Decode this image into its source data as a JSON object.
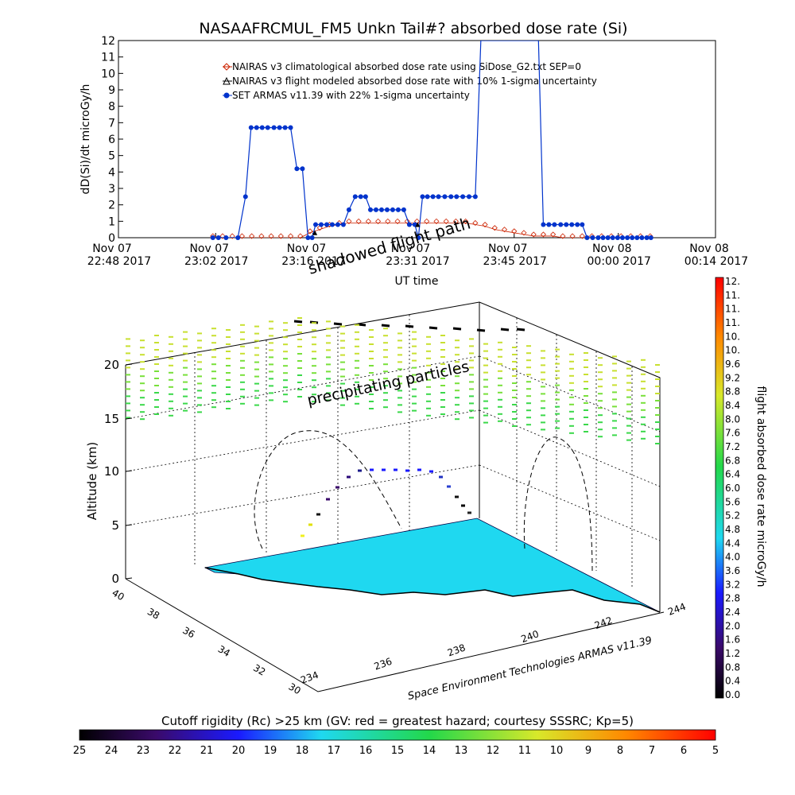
{
  "chart_data": [
    {
      "type": "line",
      "title": "NASAAFRCMUL_FM5 Unkn Tail#? absorbed dose rate (Si)",
      "xlabel": "UT time",
      "ylabel": "dD(Si)/dt microGy/h",
      "ylim": [
        0,
        12
      ],
      "yticks": [
        "0",
        "1",
        "2",
        "3",
        "4",
        "5",
        "6",
        "7",
        "8",
        "9",
        "10",
        "11",
        "12"
      ],
      "xticks": [
        {
          "line1": "Nov 07",
          "line2": "22:48 2017",
          "min": 0
        },
        {
          "line1": "Nov 07",
          "line2": "23:02 2017",
          "min": 14
        },
        {
          "line1": "Nov 07",
          "line2": "23:16 2017",
          "min": 28
        },
        {
          "line1": "Nov 07",
          "line2": "23:31 2017",
          "min": 43
        },
        {
          "line1": "Nov 07",
          "line2": "23:45 2017",
          "min": 57
        },
        {
          "line1": "Nov 08",
          "line2": "00:00 2017",
          "min": 72
        },
        {
          "line1": "Nov 08",
          "line2": "00:14 2017",
          "min": 86
        }
      ],
      "xlim_minutes": [
        0,
        86
      ],
      "legend": [
        {
          "text": "NAIRAS v3 climatological absorbed dose rate using SiDose_G2.txt SEP=0",
          "marker": "diamond",
          "color": "#cc2200"
        },
        {
          "text": "NAIRAS v3 flight modeled absorbed dose rate with 10% 1-sigma uncertainty",
          "marker": "triangle",
          "color": "#000000"
        },
        {
          "text": "SET ARMAS v11.39 with 22% 1-sigma uncertainty",
          "marker": "dot",
          "color": "#0033cc"
        }
      ],
      "legend_placement": "top-center",
      "annotation": "shadowed flight path",
      "series": [
        {
          "name": "SET ARMAS v11.39 with 22% 1-sigma uncertainty",
          "color": "#0033cc",
          "x": [
            13.6,
            14.4,
            15.5,
            17.2,
            18.3,
            19.1,
            19.9,
            20.7,
            21.5,
            22.4,
            23.2,
            24.0,
            24.8,
            25.7,
            26.5,
            27.3,
            27.9,
            28.4,
            29.2,
            30.0,
            30.8,
            31.6,
            32.4,
            33.2,
            34.1,
            34.9,
            35.6,
            36.3,
            37.1,
            37.9,
            38.7,
            39.5,
            40.3,
            41.1,
            41.9,
            42.7,
            43.2,
            43.8,
            44.5,
            45.3,
            46.1,
            47.0,
            47.9,
            48.7,
            49.6,
            50.5,
            51.4,
            52.2,
            53.0,
            53.9,
            60.5,
            61.2,
            62.0,
            62.8,
            63.7,
            64.5,
            65.3,
            66.1,
            66.8,
            67.5,
            68.3,
            69.1,
            69.8,
            70.5,
            71.2,
            71.9,
            72.6,
            73.3,
            74.0,
            74.7,
            75.4,
            76.1,
            76.7
          ],
          "y": [
            0,
            0,
            0,
            0,
            2.5,
            6.7,
            6.7,
            6.7,
            6.7,
            6.7,
            6.7,
            6.7,
            6.7,
            4.2,
            4.2,
            0,
            0,
            0.8,
            0.8,
            0.8,
            0.8,
            0.8,
            0.8,
            1.7,
            2.5,
            2.5,
            2.5,
            1.7,
            1.7,
            1.7,
            1.7,
            1.7,
            1.7,
            1.7,
            0.8,
            0.8,
            0,
            2.5,
            2.5,
            2.5,
            2.5,
            2.5,
            2.5,
            2.5,
            2.5,
            2.5,
            2.5,
            12,
            12,
            12,
            12,
            0.8,
            0.8,
            0.8,
            0.8,
            0.8,
            0.8,
            0.8,
            0.8,
            0,
            0,
            0,
            0,
            0,
            0,
            0,
            0,
            0,
            0,
            0,
            0,
            0,
            0
          ]
        },
        {
          "name": "NAIRAS v3 climatological absorbed dose rate using SiDose_G2.txt SEP=0",
          "color": "#cc2200",
          "x": [
            13.6,
            15.0,
            16.4,
            17.8,
            19.2,
            20.6,
            22.0,
            23.4,
            24.8,
            26.2,
            27.6,
            29.0,
            30.4,
            31.8,
            33.2,
            34.6,
            36.0,
            37.4,
            38.8,
            40.2,
            41.6,
            43.0,
            44.4,
            45.8,
            47.2,
            48.6,
            50.0,
            51.4,
            52.8,
            54.2,
            55.6,
            57.0,
            58.4,
            59.8,
            61.2,
            62.6,
            64.0,
            65.4,
            66.8,
            68.2,
            69.6,
            71.0,
            72.4,
            73.8,
            75.2,
            76.6
          ],
          "y": [
            0,
            0,
            0,
            0,
            0,
            0,
            0,
            0,
            0,
            0,
            0.3,
            0.5,
            0.7,
            0.8,
            0.9,
            0.9,
            0.9,
            0.9,
            0.9,
            0.9,
            0.9,
            0.9,
            0.9,
            0.9,
            0.9,
            0.9,
            0.9,
            0.8,
            0.7,
            0.5,
            0.4,
            0.3,
            0.2,
            0.1,
            0.1,
            0.1,
            0,
            0,
            0,
            0,
            0,
            0,
            0,
            0,
            0,
            0
          ]
        },
        {
          "name": "NAIRAS v3 flight modeled absorbed dose rate with 10% 1-sigma uncertainty",
          "color": "#000000",
          "x": [
            28.3,
            43.1
          ],
          "y": [
            0.3,
            0.8
          ]
        }
      ]
    },
    {
      "type": "scatter",
      "zlabel": "Altitude (km)",
      "zlim": [
        0,
        20
      ],
      "zticks": [
        "0",
        "5",
        "10",
        "15",
        "20"
      ],
      "lat_ticks": [
        "40",
        "38",
        "36",
        "34",
        "32",
        "30"
      ],
      "lon_ticks": [
        "234",
        "236",
        "238",
        "240",
        "242",
        "244"
      ],
      "annotations": [
        "precipitating particles",
        "Space Environment Technologies ARMAS v11.39"
      ],
      "surface_color": "#1fd8f0"
    },
    {
      "type": "heatmap",
      "colorbar_label": "flight absorbed dose rate microGy/h",
      "colorbar_ticks": [
        "0.0",
        "0.4",
        "0.8",
        "1.2",
        "1.6",
        "2.0",
        "2.4",
        "2.8",
        "3.2",
        "3.6",
        "4.0",
        "4.4",
        "4.8",
        "5.2",
        "5.6",
        "6.0",
        "6.4",
        "6.8",
        "7.2",
        "7.6",
        "8.0",
        "8.4",
        "8.8",
        "9.2",
        "9.6",
        "10.",
        "10.",
        "11.",
        "11.",
        "11.",
        "12."
      ],
      "range": [
        0,
        12
      ]
    },
    {
      "type": "heatmap",
      "colorbar_label": "Cutoff rigidity (Rc) >25 km (GV: red = greatest hazard; courtesy SSSRC; Kp=5)",
      "colorbar_ticks": [
        "25",
        "24",
        "23",
        "22",
        "21",
        "20",
        "19",
        "18",
        "17",
        "16",
        "15",
        "14",
        "13",
        "12",
        "11",
        "10",
        "9",
        "8",
        "7",
        "6",
        "5"
      ],
      "range": [
        25,
        5
      ]
    }
  ]
}
